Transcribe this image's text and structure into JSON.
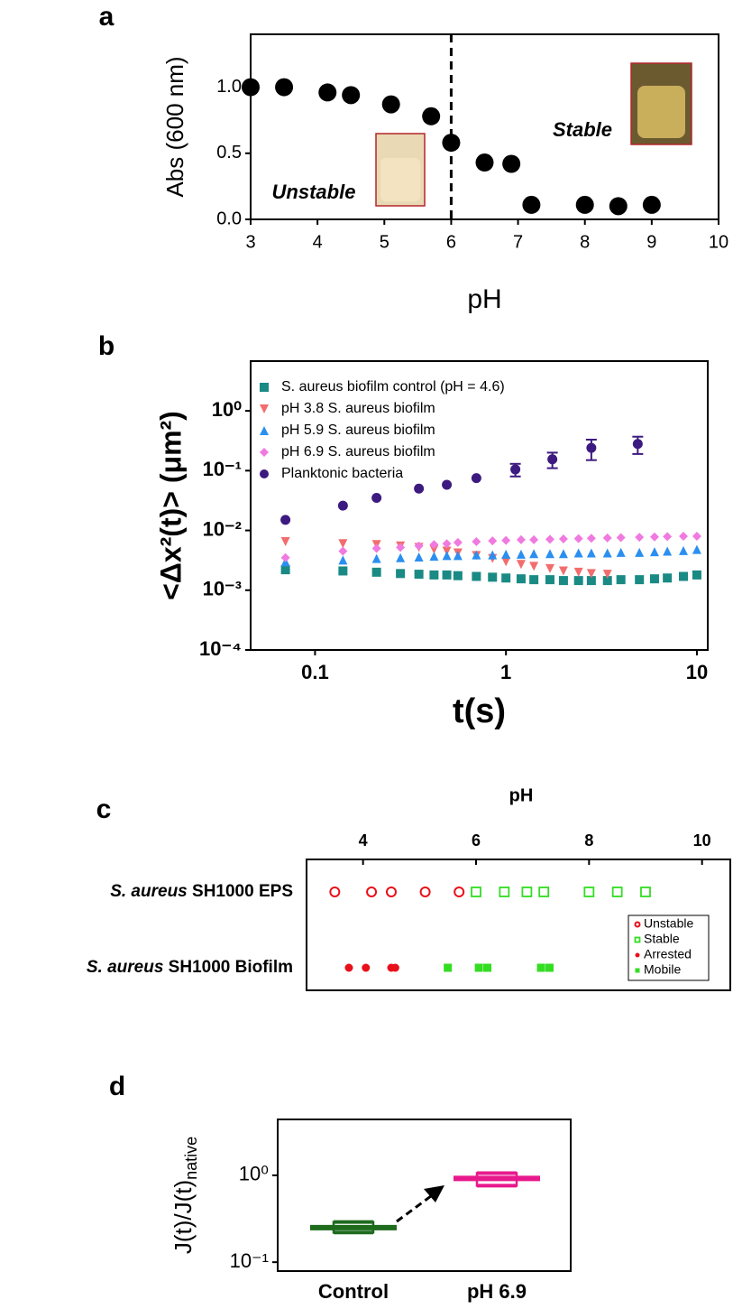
{
  "chart_data": [
    {
      "type": "scatter",
      "panel": "a",
      "x": [
        3,
        3.5,
        4.15,
        4.5,
        5.1,
        5.7,
        6,
        6.5,
        6.9,
        7.2,
        8,
        8.5,
        9
      ],
      "values": [
        1.0,
        1.0,
        0.96,
        0.94,
        0.87,
        0.78,
        0.58,
        0.43,
        0.42,
        0.11,
        0.11,
        0.1,
        0.11
      ],
      "color": "#000000",
      "xlim": [
        3,
        10
      ],
      "ylim": [
        0,
        1.4
      ],
      "xticks": [
        3,
        4,
        5,
        6,
        7,
        8,
        9,
        10
      ],
      "yticks": [
        {
          "value": 0,
          "label": "0.0"
        },
        {
          "value": 0.5,
          "label": "0.5"
        },
        {
          "value": 1,
          "label": "1.0"
        }
      ],
      "xlabel": "pH",
      "ylabel": "Abs (600 nm)",
      "vline": 6,
      "annotations": [
        {
          "text": "Unstable",
          "color": "#e8101a"
        },
        {
          "text": "Stable",
          "color": "#33cc22"
        }
      ]
    },
    {
      "type": "scatter",
      "panel": "b",
      "xscale": "log",
      "yscale": "log",
      "xlim": [
        0.046,
        11.4
      ],
      "ylim": [
        0.0001,
        6.8
      ],
      "xticks": [
        0.1,
        1,
        10
      ],
      "yticks": [
        {
          "value": 0.0001,
          "label": "10⁻⁴"
        },
        {
          "value": 0.001,
          "label": "10⁻³"
        },
        {
          "value": 0.01,
          "label": "10⁻²"
        },
        {
          "value": 0.1,
          "label": "10⁻¹"
        },
        {
          "value": 1,
          "label": "10⁰"
        }
      ],
      "xlabel": "t(s)",
      "ylabel": "<Δx²(t)> (μm²)",
      "legend": "upper left",
      "series": [
        {
          "name": "S. aureus biofilm control (pH = 4.6)",
          "color": "#1a8a84",
          "marker": "square",
          "x": [
            0.07,
            0.14,
            0.21,
            0.28,
            0.35,
            0.42,
            0.49,
            0.56,
            0.7,
            0.85,
            1.0,
            1.2,
            1.4,
            1.7,
            2,
            2.4,
            2.8,
            3.4,
            4,
            5,
            6,
            7,
            8.5,
            10
          ],
          "values": [
            0.0022,
            0.0021,
            0.002,
            0.0019,
            0.00185,
            0.0018,
            0.0018,
            0.00175,
            0.0017,
            0.00165,
            0.0016,
            0.00155,
            0.0015,
            0.0015,
            0.00145,
            0.00145,
            0.00145,
            0.00145,
            0.0015,
            0.0015,
            0.00155,
            0.0016,
            0.0017,
            0.0018
          ]
        },
        {
          "name": "pH 3.8 S. aureus biofilm",
          "color": "#f26d6d",
          "marker": "triangle-down",
          "x": [
            0.07,
            0.14,
            0.21,
            0.28,
            0.35,
            0.42,
            0.49,
            0.56,
            0.7,
            0.85,
            1.0,
            1.2,
            1.4,
            1.7,
            2,
            2.4,
            2.8,
            3.4
          ],
          "values": [
            0.0065,
            0.006,
            0.0058,
            0.0055,
            0.0052,
            0.0048,
            0.0045,
            0.0042,
            0.0038,
            0.0034,
            0.003,
            0.0027,
            0.0025,
            0.0023,
            0.0021,
            0.002,
            0.0019,
            0.00185
          ]
        },
        {
          "name": "pH 5.9 S. aureus biofilm",
          "color": "#2b8ff0",
          "marker": "triangle-up",
          "x": [
            0.07,
            0.14,
            0.21,
            0.28,
            0.35,
            0.42,
            0.49,
            0.56,
            0.7,
            0.85,
            1.0,
            1.2,
            1.4,
            1.7,
            2,
            2.4,
            2.8,
            3.4,
            4,
            5,
            6,
            7,
            8.5,
            10
          ],
          "values": [
            0.003,
            0.0032,
            0.0034,
            0.0035,
            0.0036,
            0.0037,
            0.0038,
            0.0038,
            0.0039,
            0.0039,
            0.004,
            0.004,
            0.0041,
            0.0041,
            0.0041,
            0.0042,
            0.0042,
            0.0042,
            0.0043,
            0.0043,
            0.0044,
            0.0045,
            0.0046,
            0.0048
          ]
        },
        {
          "name": "pH 6.9 S. aureus biofilm",
          "color": "#f07ae0",
          "marker": "diamond",
          "x": [
            0.07,
            0.14,
            0.21,
            0.28,
            0.35,
            0.42,
            0.49,
            0.56,
            0.7,
            0.85,
            1.0,
            1.2,
            1.4,
            1.7,
            2,
            2.4,
            2.8,
            3.4,
            4,
            5,
            6,
            7,
            8.5,
            10
          ],
          "values": [
            0.0035,
            0.0045,
            0.005,
            0.0052,
            0.0055,
            0.0058,
            0.006,
            0.0063,
            0.0065,
            0.0067,
            0.0068,
            0.007,
            0.007,
            0.0071,
            0.0072,
            0.0073,
            0.0074,
            0.0075,
            0.0076,
            0.0077,
            0.0078,
            0.0079,
            0.008,
            0.008
          ]
        },
        {
          "name": "Planktonic bacteria",
          "color": "#3d1a80",
          "marker": "circle",
          "x": [
            0.07,
            0.14,
            0.21,
            0.35,
            0.49,
            0.7,
            1.12,
            1.75,
            2.8,
            4.9
          ],
          "values": [
            0.015,
            0.026,
            0.035,
            0.05,
            0.058,
            0.075,
            0.105,
            0.155,
            0.24,
            0.28
          ],
          "errors": [
            null,
            null,
            null,
            null,
            null,
            null,
            0.025,
            0.045,
            0.09,
            0.09
          ]
        }
      ]
    },
    {
      "type": "strip",
      "panel": "c",
      "xlabel": "pH",
      "xlim": [
        3,
        10.5
      ],
      "xticks": [
        4,
        6,
        8,
        10
      ],
      "categories": [
        {
          "italic": "S. aureus",
          "text": " SH1000 EPS"
        },
        {
          "italic": "S. aureus",
          "text": " SH1000  Biofilm"
        }
      ],
      "series": [
        {
          "name": "Unstable",
          "color": "#e8101a",
          "marker": "open-circle",
          "row": 0,
          "values": [
            3.5,
            4.15,
            4.5,
            5.1,
            5.7
          ]
        },
        {
          "name": "Stable",
          "color": "#33dd22",
          "marker": "open-square",
          "row": 0,
          "values": [
            6,
            6.5,
            6.9,
            7.2,
            8,
            8.5,
            9
          ]
        },
        {
          "name": "Arrested",
          "color": "#e8101a",
          "marker": "circle",
          "row": 1,
          "values": [
            3.75,
            4.05,
            4.5,
            4.57
          ]
        },
        {
          "name": "Mobile",
          "color": "#33dd22",
          "marker": "square",
          "row": 1,
          "values": [
            5.5,
            6.05,
            6.2,
            7.15,
            7.3
          ]
        }
      ]
    },
    {
      "type": "box",
      "panel": "d",
      "yscale": "log",
      "ylim": [
        0.079,
        4.4
      ],
      "yticks": [
        {
          "value": 0.1,
          "label": "10⁻¹"
        },
        {
          "value": 1,
          "label": "10⁰"
        }
      ],
      "ylabel": "J(t)/J(t)",
      "ylabel_sub": "native",
      "categories": [
        "Control",
        "pH 6.9"
      ],
      "values": [
        0.25,
        0.92
      ],
      "low": [
        0.22,
        0.76
      ],
      "high": [
        0.29,
        1.06
      ],
      "colors": [
        "#1e6b1e",
        "#e8198c"
      ]
    }
  ]
}
